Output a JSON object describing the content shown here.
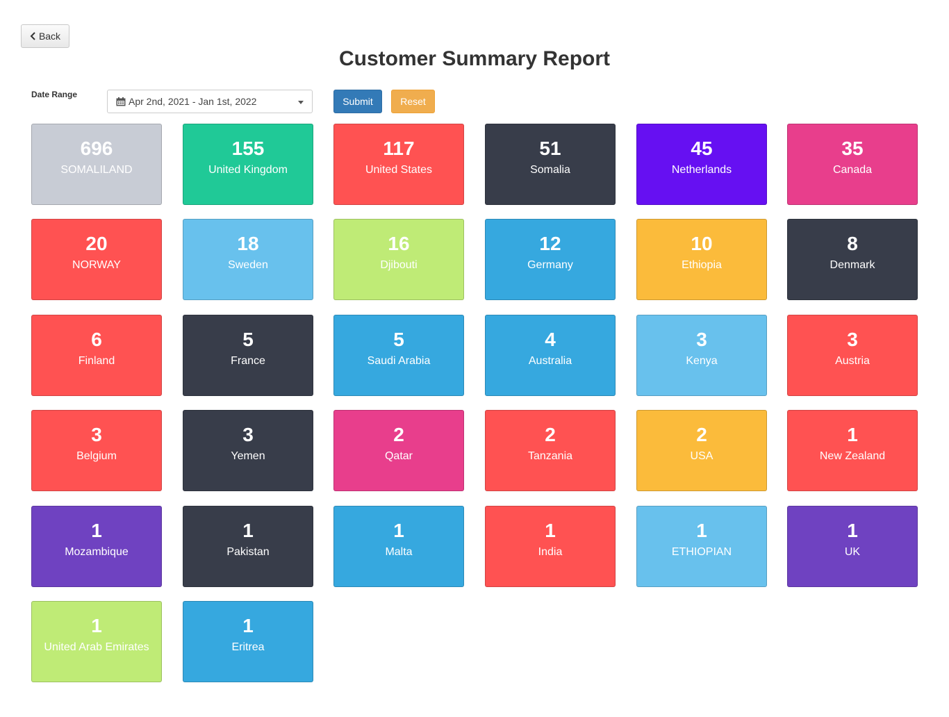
{
  "header": {
    "back_label": "Back",
    "title": "Customer Summary Report"
  },
  "filters": {
    "date_range_label": "Date Range",
    "date_range_value": "Apr 2nd, 2021 - Jan 1st, 2022",
    "submit_label": "Submit",
    "reset_label": "Reset"
  },
  "tiles": [
    {
      "count": "696",
      "country": "SOMALILAND",
      "color": "#c8ccd5"
    },
    {
      "count": "155",
      "country": "United Kingdom",
      "color": "#20c997"
    },
    {
      "count": "117",
      "country": "United States",
      "color": "#ff5252"
    },
    {
      "count": "51",
      "country": "Somalia",
      "color": "#383d4a"
    },
    {
      "count": "45",
      "country": "Netherlands",
      "color": "#6610f2"
    },
    {
      "count": "35",
      "country": "Canada",
      "color": "#e83e8c"
    },
    {
      "count": "20",
      "country": "NORWAY",
      "color": "#ff5252"
    },
    {
      "count": "18",
      "country": "Sweden",
      "color": "#68c1ed"
    },
    {
      "count": "16",
      "country": "Djibouti",
      "color": "#bfeb76"
    },
    {
      "count": "12",
      "country": "Germany",
      "color": "#36a8df"
    },
    {
      "count": "10",
      "country": "Ethiopia",
      "color": "#fbbb3b"
    },
    {
      "count": "8",
      "country": "Denmark",
      "color": "#383d4a"
    },
    {
      "count": "6",
      "country": "Finland",
      "color": "#ff5252"
    },
    {
      "count": "5",
      "country": "France",
      "color": "#383d4a"
    },
    {
      "count": "5",
      "country": "Saudi Arabia",
      "color": "#36a8df"
    },
    {
      "count": "4",
      "country": "Australia",
      "color": "#36a8df"
    },
    {
      "count": "3",
      "country": "Kenya",
      "color": "#68c1ed"
    },
    {
      "count": "3",
      "country": "Austria",
      "color": "#ff5252"
    },
    {
      "count": "3",
      "country": "Belgium",
      "color": "#ff5252"
    },
    {
      "count": "3",
      "country": "Yemen",
      "color": "#383d4a"
    },
    {
      "count": "2",
      "country": "Qatar",
      "color": "#e83e8c"
    },
    {
      "count": "2",
      "country": "Tanzania",
      "color": "#ff5252"
    },
    {
      "count": "2",
      "country": "USA",
      "color": "#fbbb3b"
    },
    {
      "count": "1",
      "country": "New Zealand",
      "color": "#ff5252"
    },
    {
      "count": "1",
      "country": "Mozambique",
      "color": "#6f42c1"
    },
    {
      "count": "1",
      "country": "Pakistan",
      "color": "#383d4a"
    },
    {
      "count": "1",
      "country": "Malta",
      "color": "#36a8df"
    },
    {
      "count": "1",
      "country": "India",
      "color": "#ff5252"
    },
    {
      "count": "1",
      "country": "ETHIOPIAN",
      "color": "#68c1ed"
    },
    {
      "count": "1",
      "country": "UK",
      "color": "#6f42c1"
    },
    {
      "count": "1",
      "country": "United Arab Emirates",
      "color": "#bfeb76"
    },
    {
      "count": "1",
      "country": "Eritrea",
      "color": "#36a8df"
    }
  ]
}
